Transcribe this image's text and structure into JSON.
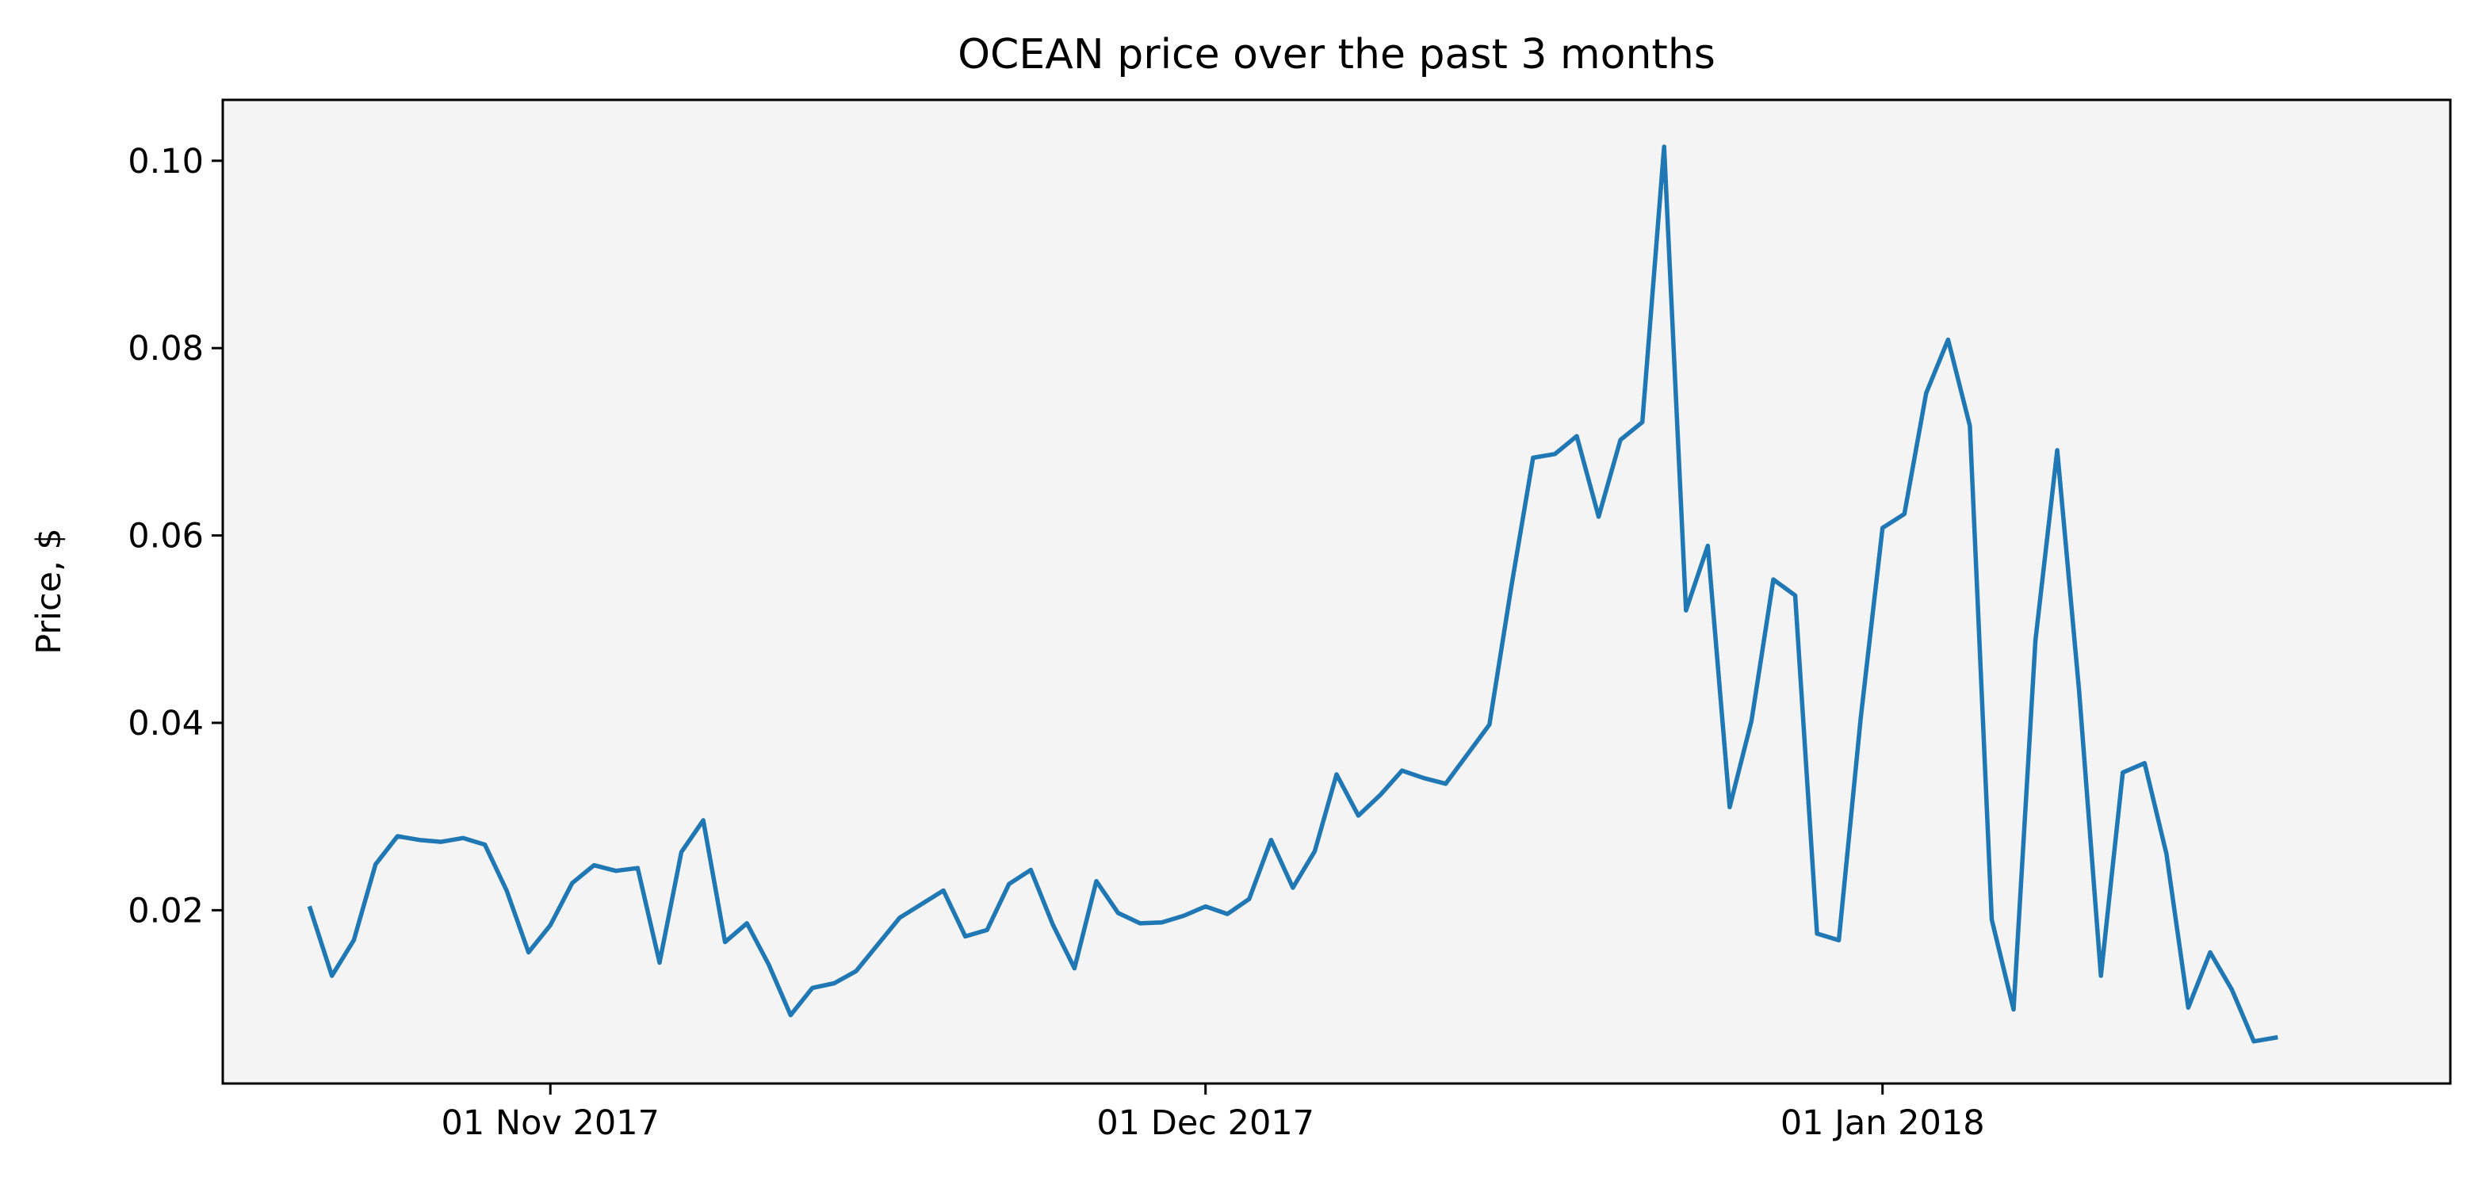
{
  "chart_data": {
    "type": "line",
    "title": "OCEAN price over the past 3 months",
    "xlabel": "",
    "ylabel": "Price, $",
    "ylim": [
      0.0015,
      0.1065
    ],
    "xlim": [
      "2017-10-17",
      "2018-01-27"
    ],
    "grid": false,
    "legend": "none",
    "colors": {
      "line": "#1f77b4",
      "plot_background": "#f4f4f4",
      "axes": "#000000"
    },
    "y_ticks": [
      {
        "value": 0.02,
        "label": "0.02"
      },
      {
        "value": 0.04,
        "label": "0.04"
      },
      {
        "value": 0.06,
        "label": "0.06"
      },
      {
        "value": 0.08,
        "label": "0.08"
      },
      {
        "value": 0.1,
        "label": "0.10"
      }
    ],
    "x_ticks": [
      {
        "value": "2017-11-01",
        "label": "01 Nov 2017"
      },
      {
        "value": "2017-12-01",
        "label": "01 Dec 2017"
      },
      {
        "value": "2018-01-01",
        "label": "01 Jan 2018"
      }
    ],
    "series": [
      {
        "points": [
          [
            "2017-10-21",
            0.0202
          ],
          [
            "2017-10-22",
            0.013
          ],
          [
            "2017-10-23",
            0.0168
          ],
          [
            "2017-10-24",
            0.0249
          ],
          [
            "2017-10-25",
            0.0279
          ],
          [
            "2017-10-26",
            0.0275
          ],
          [
            "2017-10-27",
            0.0273
          ],
          [
            "2017-10-28",
            0.0277
          ],
          [
            "2017-10-29",
            0.027
          ],
          [
            "2017-10-30",
            0.0221
          ],
          [
            "2017-10-31",
            0.0155
          ],
          [
            "2017-11-01",
            0.0184
          ],
          [
            "2017-11-02",
            0.0229
          ],
          [
            "2017-11-03",
            0.0248
          ],
          [
            "2017-11-04",
            0.0242
          ],
          [
            "2017-11-05",
            0.0245
          ],
          [
            "2017-11-06",
            0.0144
          ],
          [
            "2017-11-07",
            0.0262
          ],
          [
            "2017-11-08",
            0.0296
          ],
          [
            "2017-11-09",
            0.0166
          ],
          [
            "2017-11-10",
            0.0186
          ],
          [
            "2017-11-11",
            0.0142
          ],
          [
            "2017-11-12",
            0.0088
          ],
          [
            "2017-11-13",
            0.0117
          ],
          [
            "2017-11-14",
            0.0122
          ],
          [
            "2017-11-15",
            0.0135
          ],
          [
            "2017-11-17",
            0.0192
          ],
          [
            "2017-11-19",
            0.0221
          ],
          [
            "2017-11-20",
            0.0172
          ],
          [
            "2017-11-21",
            0.0179
          ],
          [
            "2017-11-22",
            0.0228
          ],
          [
            "2017-11-23",
            0.0243
          ],
          [
            "2017-11-24",
            0.0185
          ],
          [
            "2017-11-25",
            0.0138
          ],
          [
            "2017-11-26",
            0.0231
          ],
          [
            "2017-11-27",
            0.0197
          ],
          [
            "2017-11-28",
            0.0186
          ],
          [
            "2017-11-29",
            0.0187
          ],
          [
            "2017-11-30",
            0.0194
          ],
          [
            "2017-12-01",
            0.0204
          ],
          [
            "2017-12-02",
            0.0196
          ],
          [
            "2017-12-03",
            0.0212
          ],
          [
            "2017-12-04",
            0.0275
          ],
          [
            "2017-12-05",
            0.0224
          ],
          [
            "2017-12-06",
            0.0263
          ],
          [
            "2017-12-07",
            0.0345
          ],
          [
            "2017-12-08",
            0.0301
          ],
          [
            "2017-12-09",
            0.0323
          ],
          [
            "2017-12-10",
            0.0349
          ],
          [
            "2017-12-11",
            0.0341
          ],
          [
            "2017-12-12",
            0.0335
          ],
          [
            "2017-12-14",
            0.0398
          ],
          [
            "2017-12-15",
            0.0545
          ],
          [
            "2017-12-16",
            0.0683
          ],
          [
            "2017-12-17",
            0.0687
          ],
          [
            "2017-12-18",
            0.0706
          ],
          [
            "2017-12-19",
            0.062
          ],
          [
            "2017-12-20",
            0.0702
          ],
          [
            "2017-12-21",
            0.0721
          ],
          [
            "2017-12-22",
            0.1015
          ],
          [
            "2017-12-23",
            0.052
          ],
          [
            "2017-12-24",
            0.0589
          ],
          [
            "2017-12-25",
            0.031
          ],
          [
            "2017-12-26",
            0.0402
          ],
          [
            "2017-12-27",
            0.0553
          ],
          [
            "2017-12-28",
            0.0536
          ],
          [
            "2017-12-29",
            0.0175
          ],
          [
            "2017-12-30",
            0.0168
          ],
          [
            "2017-12-31",
            0.0405
          ],
          [
            "2018-01-01",
            0.0608
          ],
          [
            "2018-01-02",
            0.0623
          ],
          [
            "2018-01-03",
            0.0752
          ],
          [
            "2018-01-04",
            0.0809
          ],
          [
            "2018-01-05",
            0.0717
          ],
          [
            "2018-01-06",
            0.019
          ],
          [
            "2018-01-07",
            0.0094
          ],
          [
            "2018-01-08",
            0.0488
          ],
          [
            "2018-01-09",
            0.0691
          ],
          [
            "2018-01-10",
            0.0434
          ],
          [
            "2018-01-11",
            0.013
          ],
          [
            "2018-01-12",
            0.0347
          ],
          [
            "2018-01-13",
            0.0357
          ],
          [
            "2018-01-14",
            0.026
          ],
          [
            "2018-01-15",
            0.0096
          ],
          [
            "2018-01-16",
            0.0155
          ],
          [
            "2018-01-17",
            0.0115
          ],
          [
            "2018-01-18",
            0.006
          ],
          [
            "2018-01-19",
            0.0064
          ]
        ]
      }
    ]
  }
}
